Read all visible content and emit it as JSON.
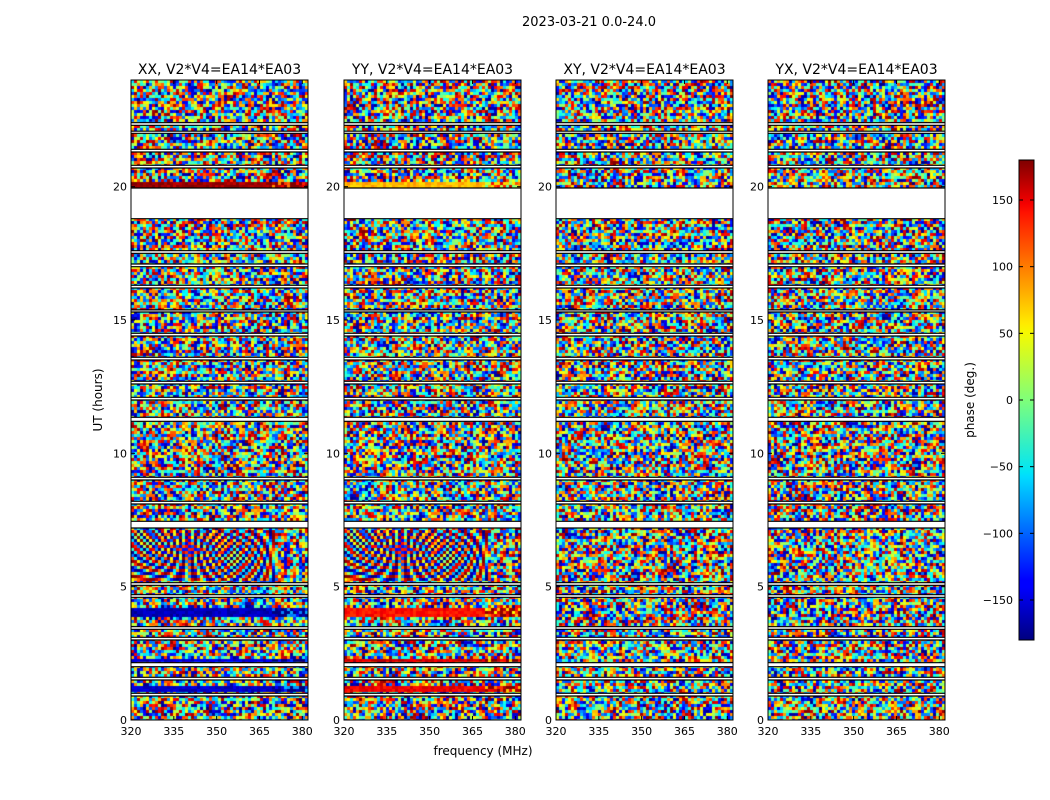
{
  "chart_data": {
    "type": "heatmap",
    "title": "2023-03-21 0.0-24.0",
    "xlabel": "frequency (MHz)",
    "ylabel": "UT (hours)",
    "xlim": [
      320,
      382
    ],
    "ylim": [
      0,
      24
    ],
    "xticks": [
      320,
      335,
      350,
      365,
      380
    ],
    "yticks": [
      0,
      5,
      10,
      15,
      20
    ],
    "panels": [
      {
        "title": "XX, V2*V4=EA14*EA03",
        "bands": [
          {
            "from": 3.95,
            "to": 4.25,
            "phase": -160
          },
          {
            "from": 1.05,
            "to": 1.3,
            "phase": -155
          },
          {
            "from": 2.2,
            "to": 2.35,
            "phase": -150
          },
          {
            "from": 19.95,
            "to": 20.25,
            "phase": 170
          }
        ]
      },
      {
        "title": "YY, V2*V4=EA14*EA03",
        "bands": [
          {
            "from": 3.95,
            "to": 4.25,
            "phase": 130
          },
          {
            "from": 1.05,
            "to": 1.3,
            "phase": 140
          },
          {
            "from": 2.2,
            "to": 2.35,
            "phase": 150
          },
          {
            "from": 19.95,
            "to": 20.25,
            "phase": 70
          }
        ]
      },
      {
        "title": "XY, V2*V4=EA14*EA03",
        "bands": []
      },
      {
        "title": "YX, V2*V4=EA14*EA03",
        "bands": []
      }
    ],
    "fringe_zones": [
      {
        "panel": 0,
        "from": 5.3,
        "to": 7.2
      },
      {
        "panel": 1,
        "from": 5.3,
        "to": 7.2
      }
    ],
    "gaps_hours": [
      [
        18.8,
        19.95
      ],
      [
        7.2,
        7.45
      ],
      [
        11.2,
        11.35
      ],
      [
        13.5,
        13.6
      ],
      [
        2.0,
        2.15
      ],
      [
        1.5,
        1.6
      ],
      [
        0.9,
        1.0
      ],
      [
        3.4,
        3.5
      ],
      [
        4.6,
        4.7
      ],
      [
        5.05,
        5.15
      ],
      [
        16.2,
        16.3
      ],
      [
        17.5,
        17.6
      ],
      [
        21.3,
        21.4
      ],
      [
        22.3,
        22.4
      ],
      [
        14.4,
        14.5
      ],
      [
        9.0,
        9.1
      ],
      [
        8.1,
        8.2
      ],
      [
        12.0,
        12.1
      ],
      [
        12.6,
        12.7
      ],
      [
        15.3,
        15.38
      ],
      [
        17.0,
        17.1
      ],
      [
        20.7,
        20.8
      ],
      [
        3.0,
        3.1
      ],
      [
        22.0,
        22.08
      ]
    ],
    "colorbar": {
      "label": "phase (deg.)",
      "range": [
        -180,
        180
      ],
      "ticks": [
        150,
        100,
        50,
        0,
        -50,
        -100,
        -150
      ],
      "tick_labels": [
        "150",
        "100",
        "50",
        "0",
        "−50",
        "−100",
        "−150"
      ],
      "colormap": "jet"
    }
  }
}
